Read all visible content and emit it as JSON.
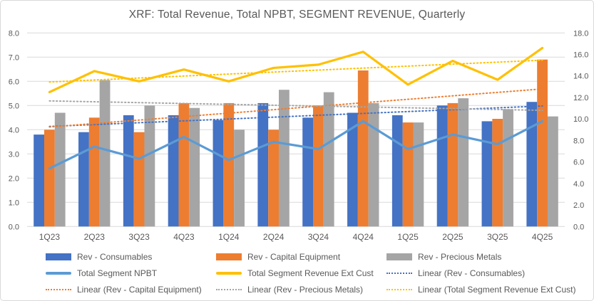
{
  "chart_data": {
    "type": "combo-bar-line",
    "title": "XRF: Total Revenue, Total NPBT, SEGMENT REVENUE, Quarterly",
    "categories": [
      "1Q23",
      "2Q23",
      "3Q23",
      "4Q23",
      "1Q24",
      "2Q24",
      "3Q24",
      "4Q24",
      "1Q25",
      "2Q25",
      "3Q25",
      "4Q25"
    ],
    "left_axis": {
      "min": 0,
      "max": 8,
      "step": 1,
      "tick_labels": [
        "0.0",
        "1.0",
        "2.0",
        "3.0",
        "4.0",
        "5.0",
        "6.0",
        "7.0",
        "8.0"
      ]
    },
    "right_axis": {
      "min": 0,
      "max": 18,
      "step": 2,
      "tick_labels": [
        "0.0",
        "2.0",
        "4.0",
        "6.0",
        "8.0",
        "10.0",
        "12.0",
        "14.0",
        "16.0",
        "18.0"
      ]
    },
    "bar_series": [
      {
        "name": "Rev - Consumables",
        "color": "#4472C4",
        "axis": "left",
        "values": [
          3.8,
          3.9,
          4.6,
          4.6,
          4.4,
          5.1,
          4.5,
          4.7,
          4.6,
          5.0,
          4.35,
          5.15
        ]
      },
      {
        "name": "Rev - Capital Equipment",
        "color": "#ED7D31",
        "axis": "left",
        "values": [
          4.0,
          4.5,
          3.9,
          5.1,
          5.1,
          4.0,
          5.0,
          6.45,
          4.3,
          5.1,
          4.45,
          6.9
        ]
      },
      {
        "name": "Rev - Precious Metals",
        "color": "#A5A5A5",
        "axis": "left",
        "values": [
          4.7,
          6.05,
          5.0,
          4.9,
          4.0,
          5.65,
          5.55,
          5.1,
          4.3,
          5.3,
          4.85,
          4.55
        ]
      }
    ],
    "line_series": [
      {
        "name": "Total Segment NPBT",
        "color": "#5B9BD5",
        "axis": "left",
        "values": [
          2.4,
          3.3,
          2.8,
          3.7,
          2.75,
          3.5,
          3.2,
          4.35,
          3.2,
          3.8,
          3.4,
          4.35
        ]
      },
      {
        "name": "Total Segment Revenue Ext Cust",
        "color": "#FFC000",
        "axis": "right",
        "values": [
          12.5,
          14.45,
          13.5,
          14.6,
          13.5,
          14.75,
          15.05,
          16.25,
          13.2,
          15.4,
          13.65,
          16.6
        ]
      }
    ],
    "trendlines": [
      {
        "name": "Linear (Rev - Consumables)",
        "color": "#4472C4",
        "source": "Rev - Consumables"
      },
      {
        "name": "Linear (Rev - Capital Equipment)",
        "color": "#ED7D31",
        "source": "Rev - Capital Equipment"
      },
      {
        "name": "Linear (Rev - Precious Metals)",
        "color": "#A5A5A5",
        "source": "Rev - Precious Metals"
      },
      {
        "name": "Linear (Total Segment Revenue Ext Cust)",
        "color": "#FFC000",
        "source": "Total Segment Revenue Ext Cust"
      }
    ],
    "legend": {
      "position": "bottom",
      "items": [
        {
          "label": "Rev - Consumables",
          "swatch": "bar",
          "color": "#4472C4"
        },
        {
          "label": "Rev - Capital Equipment",
          "swatch": "bar",
          "color": "#ED7D31"
        },
        {
          "label": "Rev - Precious Metals",
          "swatch": "bar",
          "color": "#A5A5A5"
        },
        {
          "label": "Total Segment NPBT",
          "swatch": "line",
          "color": "#5B9BD5"
        },
        {
          "label": "Total Segment Revenue Ext Cust",
          "swatch": "line",
          "color": "#FFC000"
        },
        {
          "label": "Linear (Rev - Consumables)",
          "swatch": "dotted",
          "color": "#4472C4"
        },
        {
          "label": "Linear (Rev - Capital Equipment)",
          "swatch": "dotted",
          "color": "#ED7D31"
        },
        {
          "label": "Linear (Rev - Precious Metals)",
          "swatch": "dotted",
          "color": "#A5A5A5"
        },
        {
          "label": "Linear (Total Segment Revenue Ext Cust)",
          "swatch": "dotted",
          "color": "#FFC000"
        }
      ]
    },
    "styles": {
      "text_color": "#595959",
      "gridline_color": "#D9D9D9",
      "border_color": "#D9D9D9",
      "background": "#FFFFFF",
      "grid": true
    }
  }
}
